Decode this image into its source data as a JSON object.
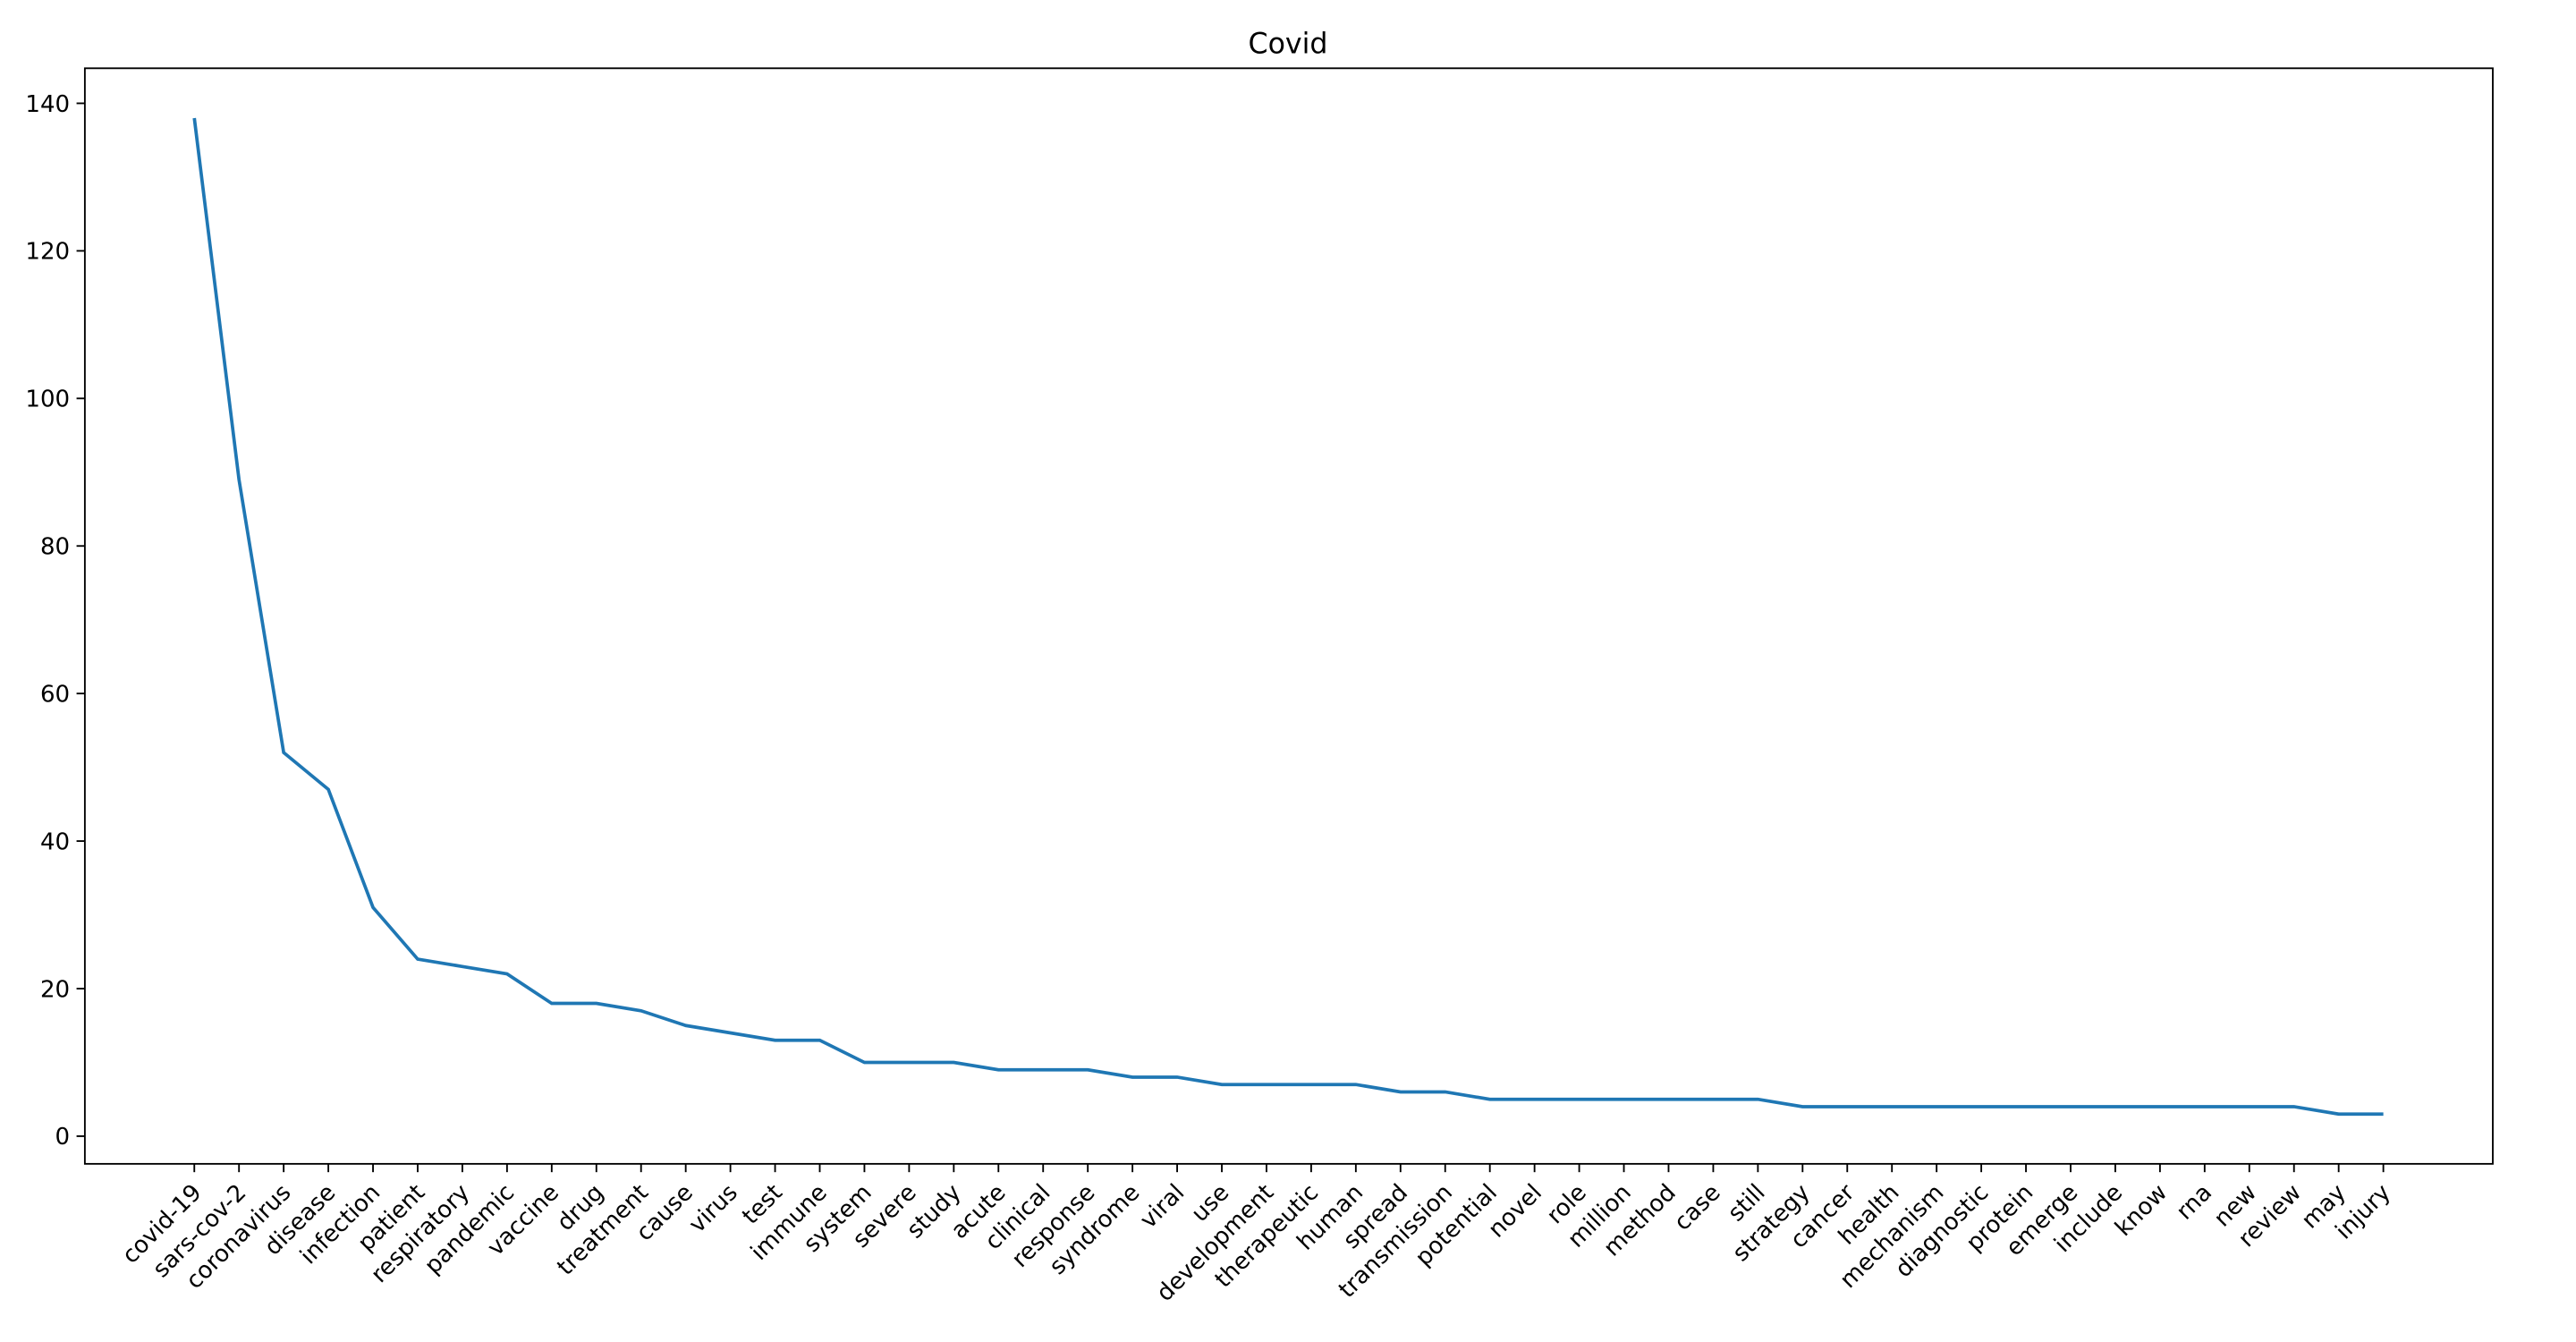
{
  "chart_data": {
    "type": "line",
    "title": "Covid",
    "categories": [
      "covid-19",
      "sars-cov-2",
      "coronavirus",
      "disease",
      "infection",
      "patient",
      "respiratory",
      "pandemic",
      "vaccine",
      "drug",
      "treatment",
      "cause",
      "virus",
      "test",
      "immune",
      "system",
      "severe",
      "study",
      "acute",
      "clinical",
      "response",
      "syndrome",
      "viral",
      "use",
      "development",
      "therapeutic",
      "human",
      "spread",
      "transmission",
      "potential",
      "novel",
      "role",
      "million",
      "method",
      "case",
      "still",
      "strategy",
      "cancer",
      "health",
      "mechanism",
      "diagnostic",
      "protein",
      "emerge",
      "include",
      "know",
      "rna",
      "new",
      "review",
      "may",
      "injury"
    ],
    "series": [
      {
        "name": "Covid",
        "color": "#1f77b4",
        "values": [
          138,
          89,
          52,
          47,
          31,
          24,
          23,
          22,
          18,
          18,
          17,
          15,
          14,
          13,
          13,
          10,
          10,
          10,
          9,
          9,
          9,
          8,
          8,
          7,
          7,
          7,
          7,
          6,
          6,
          5,
          5,
          5,
          5,
          5,
          5,
          5,
          4,
          4,
          4,
          4,
          4,
          4,
          4,
          4,
          4,
          4,
          4,
          4,
          3,
          3
        ]
      }
    ],
    "ylim": [
      -3.75,
      144.75
    ],
    "yticks": [
      0,
      20,
      40,
      60,
      80,
      100,
      120,
      140
    ],
    "grid": false
  }
}
